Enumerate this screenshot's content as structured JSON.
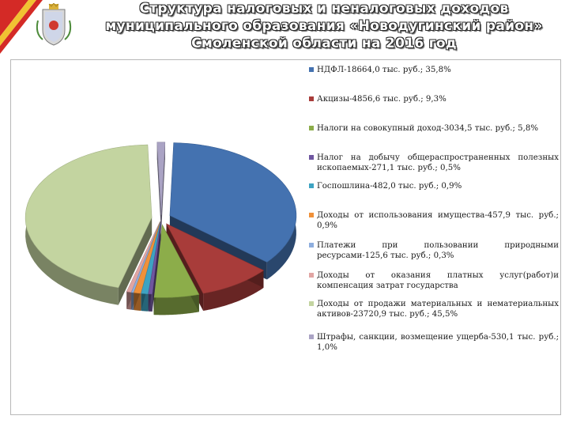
{
  "title_lines": [
    "Структура налоговых и неналоговых доходов",
    "муниципального образования «Новодугинский район»",
    "Смоленской области  на 2016 год"
  ],
  "chart_data": {
    "type": "pie",
    "title": "",
    "legend_position": "right",
    "series": [
      {
        "label": "НДФЛ-18664,0 тыс. руб.; 35,8%",
        "value": 35.8,
        "color": "#4472b0"
      },
      {
        "label": "Акцизы-4856,6 тыс. руб.; 9,3%",
        "value": 9.3,
        "color": "#a83c3a"
      },
      {
        "label": "Налоги на совокупный доход-3034,5 тыс. руб.; 5,8%",
        "value": 5.8,
        "color": "#8cad4a"
      },
      {
        "label": "Налог на добычу общераспространенных полезных ископаемых-271,1 тыс. руб.; 0,5%",
        "value": 0.5,
        "color": "#6f56a0"
      },
      {
        "label": "Госпошлина-482,0 тыс. руб.; 0,9%",
        "value": 0.9,
        "color": "#3ea3c2"
      },
      {
        "label": "Доходы от использования имущества-457,9 тыс. руб.; 0,9%",
        "value": 0.9,
        "color": "#f0913a"
      },
      {
        "label": "Платежи при пользовании природными ресурсами-125,6 тыс. руб.; 0,3%",
        "value": 0.3,
        "color": "#8eaede"
      },
      {
        "label": "Доходы от оказания платных услуг(работ)и компенсация затрат государства",
        "value": 0.6,
        "color": "#e1a5a3"
      },
      {
        "label": "Доходы от продажи материальных и нематериальных активов-23720,9 тыс. руб.; 45,5%",
        "value": 45.5,
        "color": "#c3d4a0"
      },
      {
        "label": "Штрафы, санкции, возмещение ущерба-530,1 тыс. руб.; 1,0%",
        "value": 1.0,
        "color": "#aaa3c4"
      }
    ]
  },
  "legend_spacing": [
    0,
    24,
    24,
    24,
    10,
    24,
    12,
    12,
    10,
    16
  ]
}
